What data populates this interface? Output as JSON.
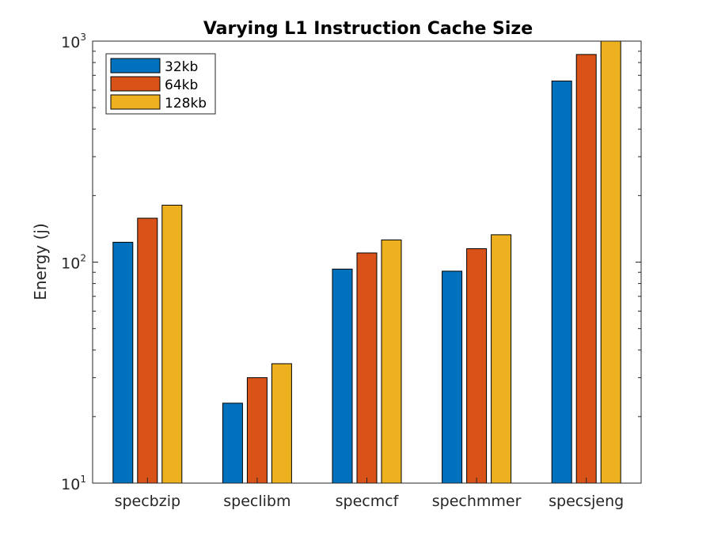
{
  "chart_data": {
    "type": "bar",
    "title": "Varying L1 Instruction Cache Size",
    "xlabel": "",
    "ylabel": "Energy (j)",
    "y_scale": "log",
    "ylim": [
      10,
      1000
    ],
    "y_ticks": [
      {
        "value": 10,
        "base": "10",
        "exp": "1"
      },
      {
        "value": 100,
        "base": "10",
        "exp": "2"
      },
      {
        "value": 1000,
        "base": "10",
        "exp": "3"
      }
    ],
    "categories": [
      "specbzip",
      "speclibm",
      "specmcf",
      "spechmmer",
      "specsjeng"
    ],
    "series": [
      {
        "name": "32kb",
        "color": "#0072BD",
        "values": [
          123,
          23,
          93,
          91,
          660
        ]
      },
      {
        "name": "64kb",
        "color": "#D95319",
        "values": [
          158,
          30,
          110,
          115,
          870
        ]
      },
      {
        "name": "128kb",
        "color": "#EDB120",
        "values": [
          181,
          34.7,
          126,
          133,
          1000
        ]
      }
    ],
    "legend": "top-left",
    "grid": false
  }
}
